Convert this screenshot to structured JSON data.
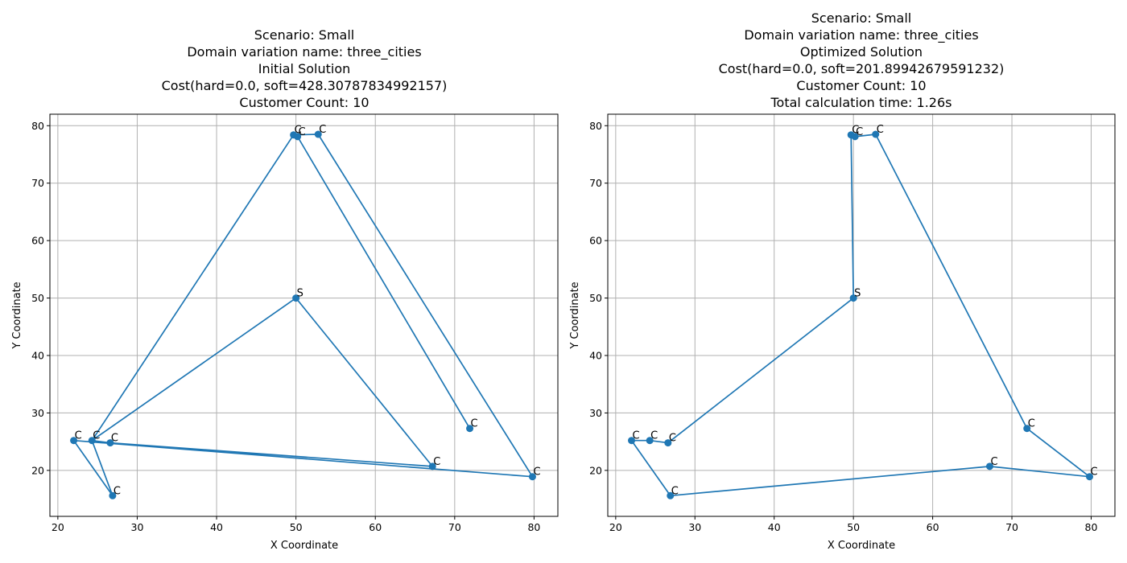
{
  "colors": {
    "series": "#1f77b4",
    "grid": "#b0b0b0",
    "frame": "#000000"
  },
  "chart_data": [
    {
      "type": "line",
      "title_lines": [
        "Scenario: Small",
        "Domain variation name: three_cities",
        "Initial Solution",
        "Cost(hard=0.0, soft=428.30787834992157)",
        "Customer Count: 10"
      ],
      "xlabel": "X Coordinate",
      "ylabel": "Y Coordinate",
      "xlim": [
        19.0,
        83.0
      ],
      "ylim": [
        12.0,
        82.0
      ],
      "xticks": [
        20,
        30,
        40,
        50,
        60,
        70,
        80
      ],
      "yticks": [
        20,
        30,
        40,
        50,
        60,
        70,
        80
      ],
      "grid": true,
      "series": [
        {
          "x": [
            50.0,
            24.3,
            49.7,
            50.2,
            71.9,
            50.2,
            49.7,
            52.8,
            79.8,
            22.0,
            26.9,
            24.3,
            26.6,
            67.2,
            50.0
          ],
          "y": [
            50.0,
            25.2,
            78.4,
            78.1,
            27.3,
            78.1,
            78.4,
            78.5,
            18.9,
            25.2,
            15.6,
            25.2,
            24.8,
            20.7,
            50.0
          ]
        }
      ],
      "point_labels": [
        {
          "text": "S",
          "x": 50.0,
          "y": 50.0
        },
        {
          "text": "C",
          "x": 49.7,
          "y": 78.4
        },
        {
          "text": "C",
          "x": 50.2,
          "y": 78.1
        },
        {
          "text": "C",
          "x": 52.8,
          "y": 78.5
        },
        {
          "text": "C",
          "x": 71.9,
          "y": 27.3
        },
        {
          "text": "C",
          "x": 79.8,
          "y": 18.9
        },
        {
          "text": "C",
          "x": 67.2,
          "y": 20.7
        },
        {
          "text": "C",
          "x": 22.0,
          "y": 25.2
        },
        {
          "text": "C",
          "x": 24.3,
          "y": 25.2
        },
        {
          "text": "C",
          "x": 26.6,
          "y": 24.8
        },
        {
          "text": "C",
          "x": 26.9,
          "y": 15.6
        }
      ]
    },
    {
      "type": "line",
      "title_lines": [
        "Scenario: Small",
        "Domain variation name: three_cities",
        "Optimized Solution",
        "Cost(hard=0.0, soft=201.89942679591232)",
        "Customer Count: 10",
        "Total calculation time: 1.26s"
      ],
      "xlabel": "X Coordinate",
      "ylabel": "Y Coordinate",
      "xlim": [
        19.0,
        83.0
      ],
      "ylim": [
        12.0,
        82.0
      ],
      "xticks": [
        20,
        30,
        40,
        50,
        60,
        70,
        80
      ],
      "yticks": [
        20,
        30,
        40,
        50,
        60,
        70,
        80
      ],
      "grid": true,
      "series": [
        {
          "x": [
            50.0,
            49.7,
            50.2,
            52.8,
            71.9,
            79.8,
            67.2,
            26.9,
            22.0,
            24.3,
            26.6,
            50.0
          ],
          "y": [
            50.0,
            78.4,
            78.1,
            78.5,
            27.3,
            18.9,
            20.7,
            15.6,
            25.2,
            25.2,
            24.8,
            50.0
          ]
        }
      ],
      "point_labels": [
        {
          "text": "S",
          "x": 50.0,
          "y": 50.0
        },
        {
          "text": "C",
          "x": 49.7,
          "y": 78.4
        },
        {
          "text": "C",
          "x": 50.2,
          "y": 78.1
        },
        {
          "text": "C",
          "x": 52.8,
          "y": 78.5
        },
        {
          "text": "C",
          "x": 71.9,
          "y": 27.3
        },
        {
          "text": "C",
          "x": 79.8,
          "y": 18.9
        },
        {
          "text": "C",
          "x": 67.2,
          "y": 20.7
        },
        {
          "text": "C",
          "x": 22.0,
          "y": 25.2
        },
        {
          "text": "C",
          "x": 24.3,
          "y": 25.2
        },
        {
          "text": "C",
          "x": 26.6,
          "y": 24.8
        },
        {
          "text": "C",
          "x": 26.9,
          "y": 15.6
        }
      ]
    }
  ]
}
